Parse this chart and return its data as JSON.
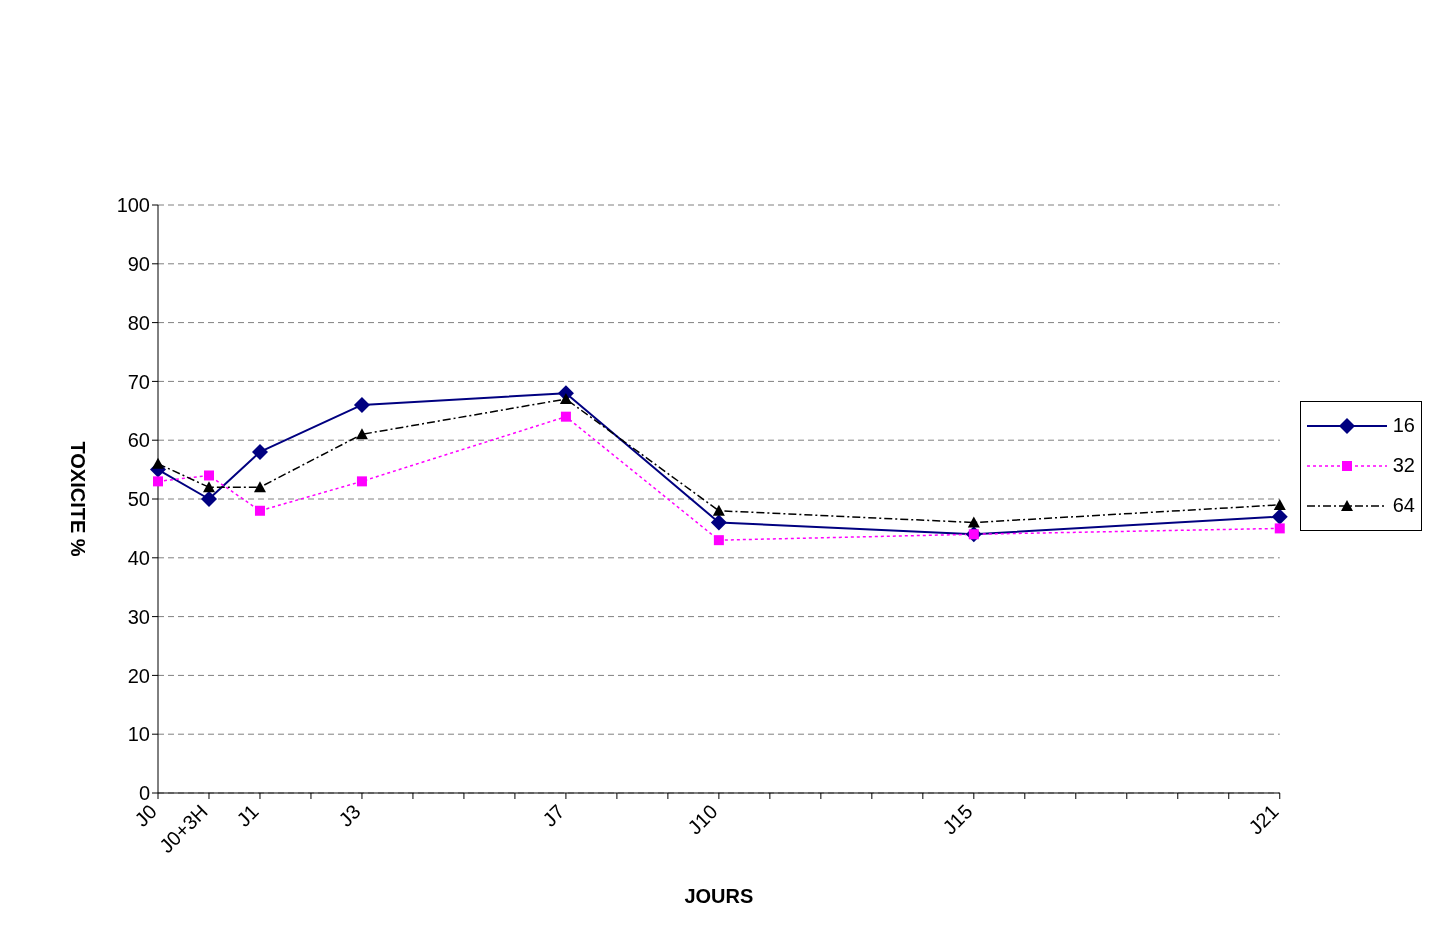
{
  "chart_data": {
    "type": "line",
    "xlabel": "JOURS",
    "ylabel": "TOXICITE %",
    "categories": [
      "J0",
      "J0+3H",
      "J1",
      null,
      "J3",
      null,
      null,
      null,
      "J7",
      null,
      null,
      "J10",
      null,
      null,
      null,
      null,
      "J15",
      null,
      null,
      null,
      null,
      null,
      "J21"
    ],
    "series": [
      {
        "name": "16",
        "color": "#000080",
        "marker": "diamond",
        "line_style": "solid",
        "values": [
          55,
          50,
          58,
          null,
          66,
          null,
          null,
          null,
          68,
          null,
          null,
          46,
          null,
          null,
          null,
          null,
          44,
          null,
          null,
          null,
          null,
          null,
          47
        ]
      },
      {
        "name": "32",
        "color": "#ff00ff",
        "marker": "square",
        "line_style": "dotted",
        "values": [
          53,
          54,
          48,
          null,
          53,
          null,
          null,
          null,
          64,
          null,
          null,
          43,
          null,
          null,
          null,
          null,
          44,
          null,
          null,
          null,
          null,
          null,
          45
        ]
      },
      {
        "name": "64",
        "color": "#000000",
        "marker": "triangle",
        "line_style": "dashed",
        "values": [
          56,
          52,
          52,
          null,
          61,
          null,
          null,
          null,
          67,
          null,
          null,
          48,
          null,
          null,
          null,
          null,
          46,
          null,
          null,
          null,
          null,
          null,
          49
        ]
      }
    ],
    "ylim": [
      0,
      100
    ],
    "yticks": [
      0,
      10,
      20,
      30,
      40,
      50,
      60,
      70,
      80,
      90,
      100
    ],
    "grid": "y",
    "legend": "right"
  }
}
